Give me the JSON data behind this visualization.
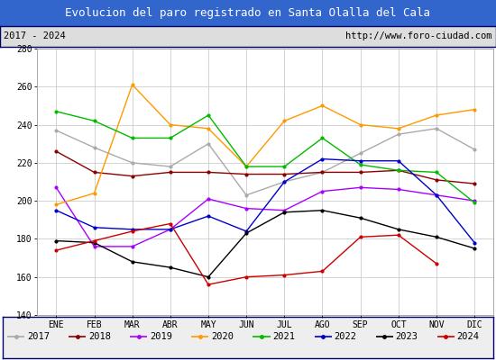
{
  "title": "Evolucion del paro registrado en Santa Olalla del Cala",
  "subtitle_left": "2017 - 2024",
  "subtitle_right": "http://www.foro-ciudad.com",
  "months": [
    "ENE",
    "FEB",
    "MAR",
    "ABR",
    "MAY",
    "JUN",
    "JUL",
    "AGO",
    "SEP",
    "OCT",
    "NOV",
    "DIC"
  ],
  "ylim": [
    140,
    280
  ],
  "yticks": [
    140,
    160,
    180,
    200,
    220,
    240,
    260,
    280
  ],
  "series": {
    "2017": {
      "color": "#aaaaaa",
      "values": [
        237,
        228,
        220,
        218,
        230,
        203,
        210,
        215,
        225,
        235,
        238,
        227
      ]
    },
    "2018": {
      "color": "#8b0000",
      "values": [
        226,
        215,
        213,
        215,
        215,
        214,
        214,
        215,
        215,
        216,
        211,
        209
      ]
    },
    "2019": {
      "color": "#aa00ff",
      "values": [
        207,
        176,
        176,
        185,
        201,
        196,
        195,
        205,
        207,
        206,
        203,
        200
      ]
    },
    "2020": {
      "color": "#ff9900",
      "values": [
        198,
        204,
        261,
        240,
        238,
        218,
        242,
        250,
        240,
        238,
        245,
        248
      ]
    },
    "2021": {
      "color": "#00bb00",
      "values": [
        247,
        242,
        233,
        233,
        245,
        218,
        218,
        233,
        219,
        216,
        215,
        199
      ]
    },
    "2022": {
      "color": "#0000cc",
      "values": [
        195,
        186,
        185,
        185,
        192,
        184,
        210,
        222,
        221,
        221,
        203,
        178
      ]
    },
    "2023": {
      "color": "#000000",
      "values": [
        179,
        178,
        168,
        165,
        160,
        183,
        194,
        195,
        191,
        185,
        181,
        175
      ]
    },
    "2024": {
      "color": "#cc0000",
      "values": [
        174,
        179,
        184,
        188,
        156,
        160,
        161,
        163,
        181,
        182,
        167,
        null
      ]
    }
  },
  "title_bg_color": "#3366cc",
  "title_text_color": "#ffffff",
  "subtitle_bg_color": "#dddddd",
  "plot_bg_color": "#ffffff",
  "grid_color": "#cccccc",
  "border_color": "#000066",
  "legend_bg_color": "#eeeeee",
  "title_fontsize": 9,
  "subtitle_fontsize": 7.5,
  "tick_fontsize": 7,
  "legend_fontsize": 7.5
}
